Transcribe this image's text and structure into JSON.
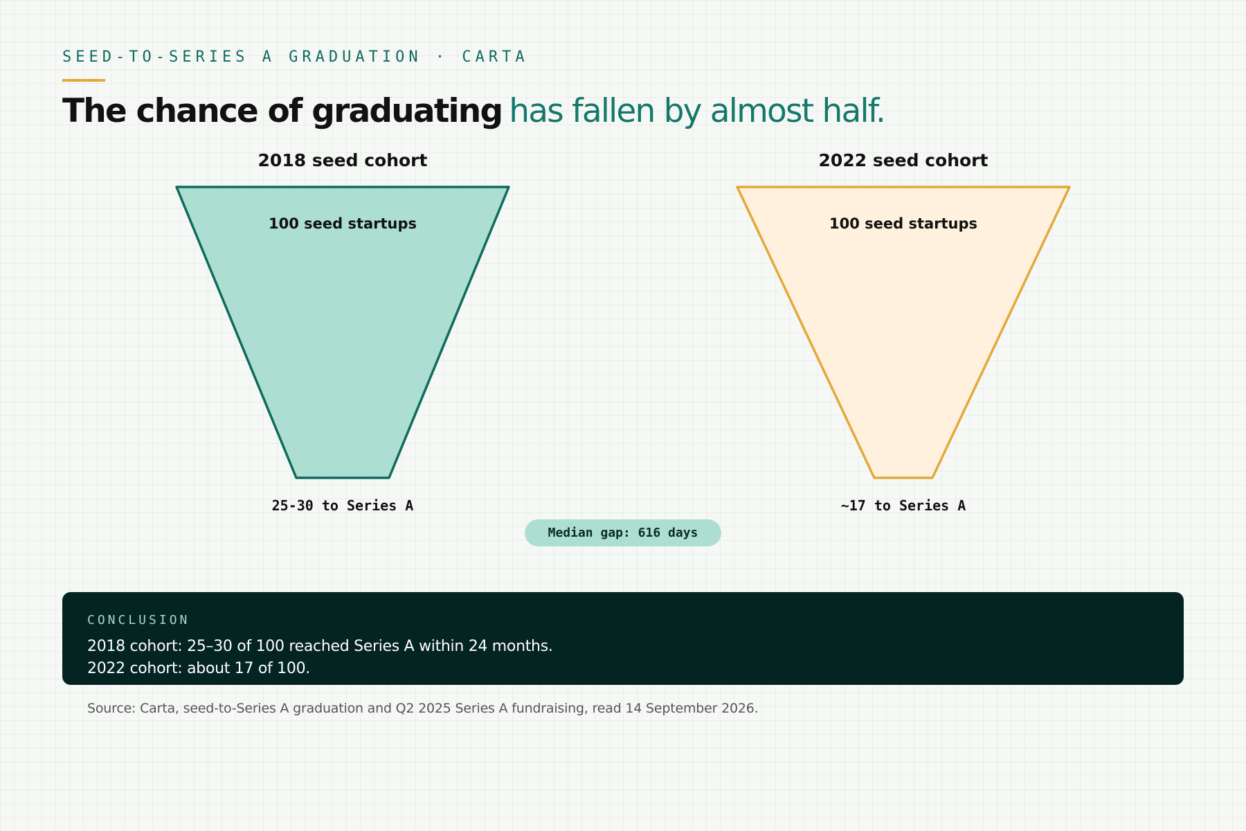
{
  "header": {
    "eyebrow": "SEED-TO-SERIES A GRADUATION · CARTA",
    "headline_strong": "The chance of graduating",
    "headline_accent": "has fallen by almost half."
  },
  "cohorts": [
    {
      "title": "2018 seed cohort",
      "top_label": "100 seed startups",
      "bottom_label": "25-30 to Series A",
      "start": 100,
      "end_low": 25,
      "end_high": 30
    },
    {
      "title": "2022 seed cohort",
      "top_label": "100 seed startups",
      "bottom_label": "~17 to Series A",
      "start": 100,
      "end": 17
    }
  ],
  "median_gap": "Median gap: 616 days",
  "conclusion": {
    "label": "CONCLUSION",
    "line1": "2018 cohort: 25–30 of 100 reached Series A within 24 months.",
    "line2": "2022 cohort: about 17 of 100."
  },
  "source": "Source: Carta, seed-to-Series A graduation and Q2 2025 Series A fundraising, read 14 September 2026.",
  "colors": {
    "cohort_2018_fill": "#acdfd1",
    "cohort_2018_stroke": "#0e6b5e",
    "cohort_2022_fill": "#fff1de",
    "cohort_2022_stroke": "#e2a93a",
    "accent": "#e2a93a",
    "panel": "#032421"
  }
}
